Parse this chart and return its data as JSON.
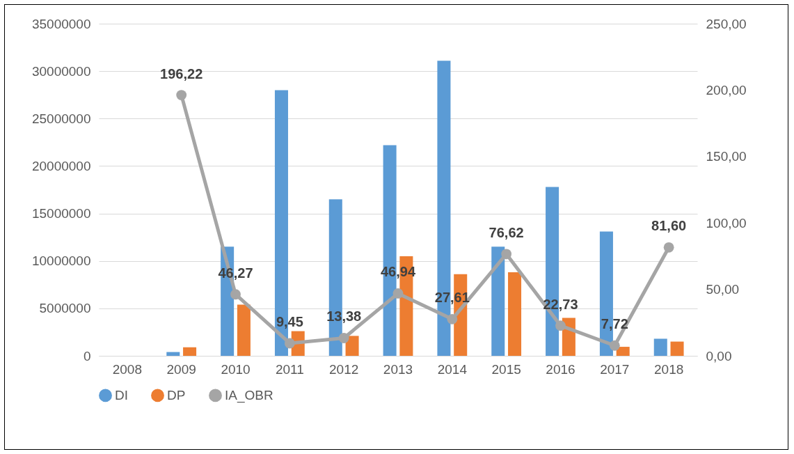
{
  "chart_data": {
    "type": "bar",
    "categories": [
      "2008",
      "2009",
      "2010",
      "2011",
      "2012",
      "2013",
      "2014",
      "2015",
      "2016",
      "2017",
      "2018"
    ],
    "series": [
      {
        "name": "DI",
        "color": "#5b9bd5",
        "values": [
          0,
          400000,
          11500000,
          28000000,
          16500000,
          22200000,
          31100000,
          11500000,
          17800000,
          13100000,
          1800000
        ]
      },
      {
        "name": "DP",
        "color": "#ed7d31",
        "values": [
          0,
          900000,
          5400000,
          2600000,
          2100000,
          10500000,
          8600000,
          8800000,
          4000000,
          950000,
          1500000
        ]
      },
      {
        "name": "IA_OBR",
        "type": "line",
        "axis": "y2",
        "color": "#a5a5a5",
        "marker": "circle",
        "values": [
          null,
          196.22,
          46.27,
          9.45,
          13.38,
          46.94,
          27.61,
          76.62,
          22.73,
          7.72,
          81.6
        ],
        "value_labels": [
          null,
          "196,22",
          "46,27",
          "9,45",
          "13,38",
          "46,94",
          "27,61",
          "76,62",
          "22,73",
          "7,72",
          "81,60"
        ]
      }
    ],
    "ylim": [
      0,
      35000000
    ],
    "yticks": [
      0,
      5000000,
      10000000,
      15000000,
      20000000,
      25000000,
      30000000,
      35000000
    ],
    "y2lim": [
      0,
      250
    ],
    "y2ticks": [
      {
        "value": 0,
        "label": "0,00"
      },
      {
        "value": 50,
        "label": "50,00"
      },
      {
        "value": 100,
        "label": "100,00"
      },
      {
        "value": 150,
        "label": "150,00"
      },
      {
        "value": 200,
        "label": "200,00"
      },
      {
        "value": 250,
        "label": "250,00"
      }
    ],
    "grid": "y",
    "legend": "bottom"
  }
}
